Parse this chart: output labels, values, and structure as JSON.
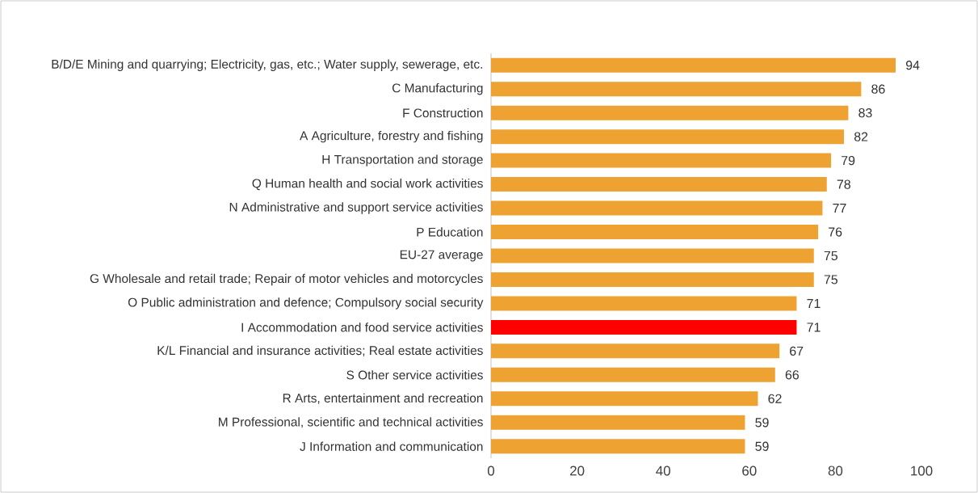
{
  "chart_data": {
    "type": "bar",
    "orientation": "horizontal",
    "categories": [
      "B/D/E Mining and quarrying; Electricity, gas, etc.; Water supply, sewerage, etc.",
      "C Manufacturing",
      "F Construction",
      "A Agriculture, forestry and fishing",
      "H Transportation and storage",
      "Q Human health and social work activities",
      "N Administrative and support service activities",
      "P Education",
      "EU-27 average",
      "G Wholesale and retail trade; Repair of motor vehicles and motorcycles",
      "O Public administration and defence; Compulsory social security",
      "I Accommodation and food service activities",
      "K/L Financial and insurance activities; Real estate activities",
      "S Other service activities",
      "R Arts, entertainment and recreation",
      "M Professional, scientific and technical activities",
      "J Information and communication"
    ],
    "values": [
      94,
      86,
      83,
      82,
      79,
      78,
      77,
      76,
      75,
      75,
      71,
      71,
      67,
      66,
      62,
      59,
      59
    ],
    "colors": [
      "#eea231",
      "#eea231",
      "#eea231",
      "#eea231",
      "#eea231",
      "#eea231",
      "#eea231",
      "#eea231",
      "#eea231",
      "#eea231",
      "#eea231",
      "#ff0000",
      "#eea231",
      "#eea231",
      "#eea231",
      "#eea231",
      "#eea231"
    ],
    "xlim": [
      0,
      100
    ],
    "xticks": [
      0,
      20,
      40,
      60,
      80,
      100
    ],
    "data_labels": true,
    "grid": false
  }
}
